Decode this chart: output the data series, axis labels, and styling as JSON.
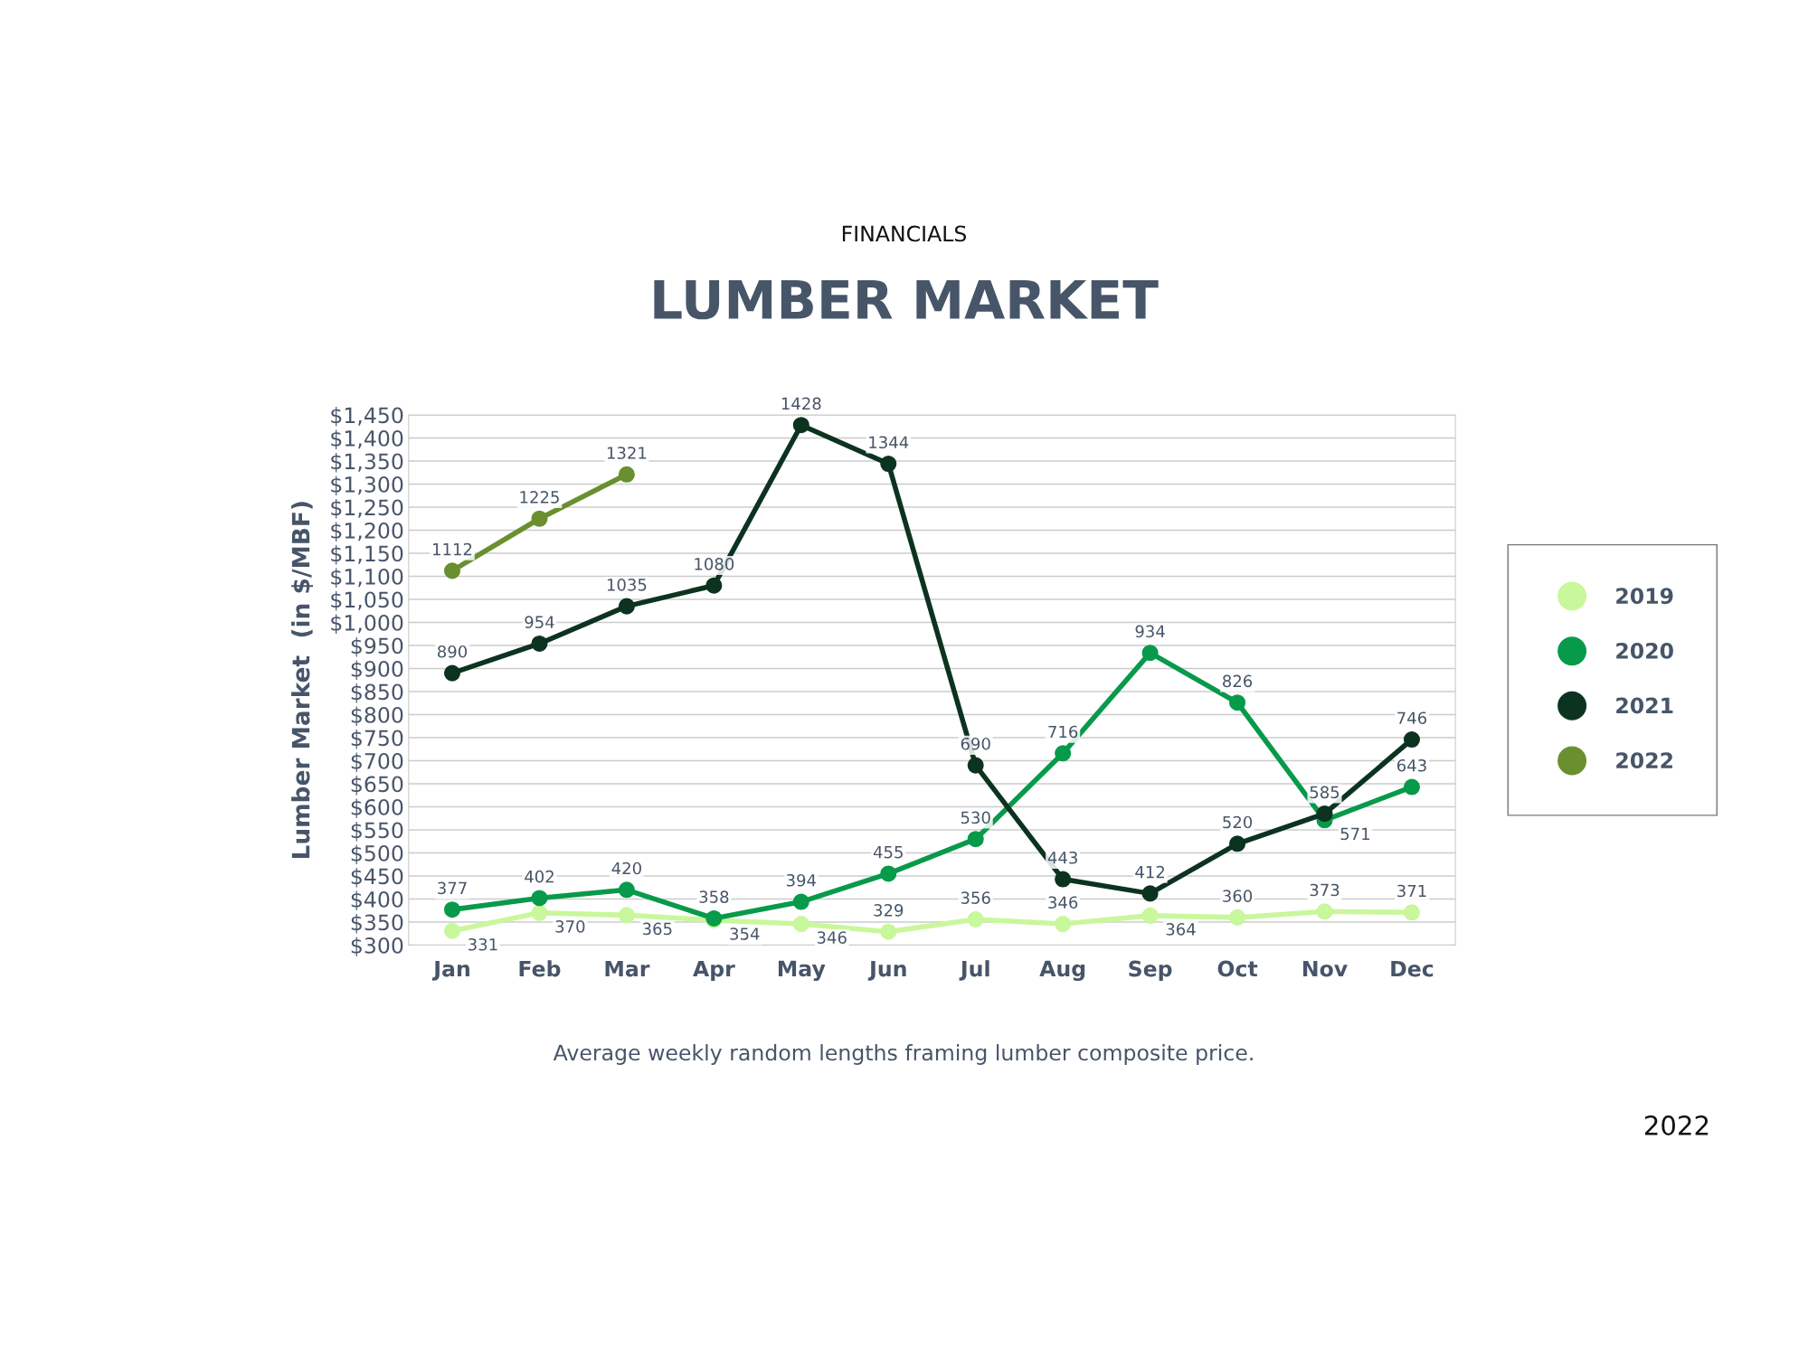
{
  "chart_data": {
    "type": "line",
    "title": "LUMBER MARKET",
    "subtitle": "FINANCIALS",
    "ylabel": "Lumber Market  (in $/MBF)",
    "categories": [
      "Jan",
      "Feb",
      "Mar",
      "Apr",
      "May",
      "Jun",
      "Jul",
      "Aug",
      "Sep",
      "Oct",
      "Nov",
      "Dec"
    ],
    "series": [
      {
        "name": "2019",
        "color": "#c9f79b",
        "values": [
          331,
          370,
          365,
          354,
          346,
          329,
          356,
          346,
          364,
          360,
          373,
          371
        ]
      },
      {
        "name": "2020",
        "color": "#079a4a",
        "values": [
          377,
          402,
          420,
          358,
          394,
          455,
          530,
          716,
          934,
          826,
          571,
          643
        ]
      },
      {
        "name": "2021",
        "color": "#0c3320",
        "values": [
          890,
          954,
          1035,
          1080,
          1428,
          1344,
          690,
          443,
          412,
          520,
          585,
          746
        ]
      },
      {
        "name": "2022",
        "color": "#6a8f2f",
        "values": [
          1112,
          1225,
          1321,
          null,
          null,
          null,
          null,
          null,
          null,
          null,
          null,
          null
        ]
      }
    ],
    "ylim": [
      300,
      1450
    ],
    "yticks": [
      {
        "value": 300,
        "label": "$300"
      },
      {
        "value": 350,
        "label": "$350"
      },
      {
        "value": 400,
        "label": "$400"
      },
      {
        "value": 450,
        "label": "$450"
      },
      {
        "value": 500,
        "label": "$500"
      },
      {
        "value": 550,
        "label": "$550"
      },
      {
        "value": 600,
        "label": "$600"
      },
      {
        "value": 650,
        "label": "$650"
      },
      {
        "value": 700,
        "label": "$700"
      },
      {
        "value": 750,
        "label": "$750"
      },
      {
        "value": 800,
        "label": "$800"
      },
      {
        "value": 850,
        "label": "$850"
      },
      {
        "value": 900,
        "label": "$900"
      },
      {
        "value": 950,
        "label": "$950"
      },
      {
        "value": 1000,
        "label": "$1,000"
      },
      {
        "value": 1050,
        "label": "$1,050"
      },
      {
        "value": 1100,
        "label": "$1,100"
      },
      {
        "value": 1150,
        "label": "$1,150"
      },
      {
        "value": 1200,
        "label": "$1,200"
      },
      {
        "value": 1250,
        "label": "$1,250"
      },
      {
        "value": 1300,
        "label": "$1,300"
      },
      {
        "value": 1350,
        "label": "$1,350"
      },
      {
        "value": 1400,
        "label": "$1,400"
      },
      {
        "value": 1450,
        "label": "$1,450"
      }
    ],
    "grid": "y",
    "legend": "right",
    "marker": "circle",
    "line_style": "solid",
    "data_labels": true,
    "annotations": [
      "Average weekly random lengths framing lumber composite price.",
      "2022"
    ]
  }
}
